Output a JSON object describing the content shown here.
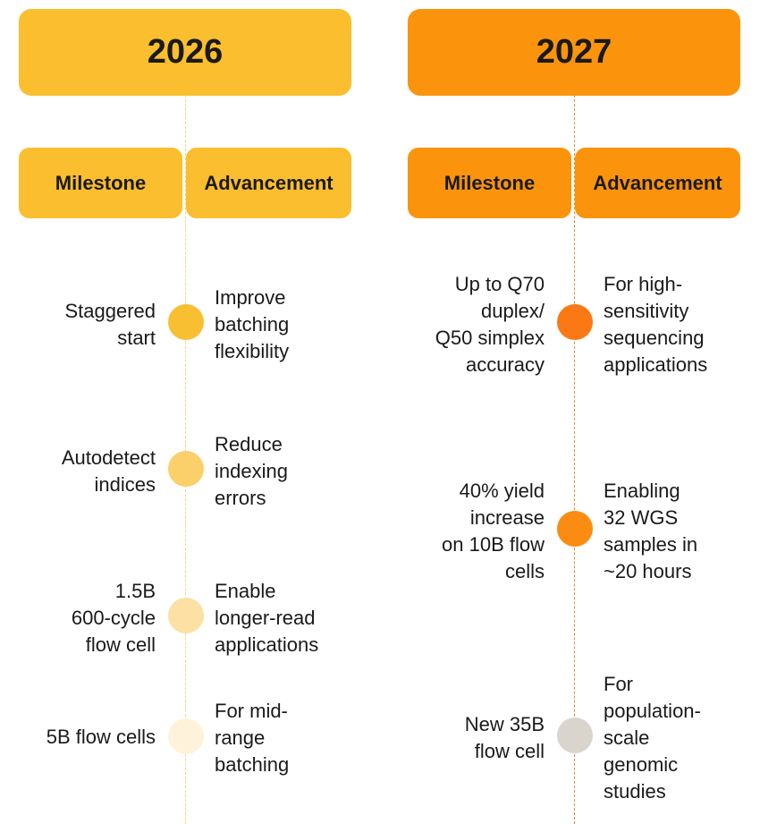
{
  "columns": [
    {
      "year": "2026",
      "accent": "#FBBE2E",
      "line_color": "#F7D37A",
      "headers": {
        "milestone": "Milestone",
        "advancement": "Advancement"
      },
      "items": [
        {
          "milestone": "Staggered\nstart",
          "advancement": "Improve\nbatching\nflexibility",
          "dot_color": "#F9BF33"
        },
        {
          "milestone": "Autodetect\nindices",
          "advancement": "Reduce\nindexing\nerrors",
          "dot_color": "#FBCF6A"
        },
        {
          "milestone": "1.5B\n600-cycle\nflow cell",
          "advancement": "Enable\nlonger-read\napplications",
          "dot_color": "#FCE0A4"
        },
        {
          "milestone": "5B flow cells",
          "advancement": "For mid-\nrange\nbatching",
          "dot_color": "#FEF2DA"
        }
      ]
    },
    {
      "year": "2027",
      "accent": "#FB940C",
      "line_color": "#EE8A2A",
      "headers": {
        "milestone": "Milestone",
        "advancement": "Advancement"
      },
      "items": [
        {
          "milestone": "Up to Q70\nduplex/\nQ50 simplex\naccuracy",
          "advancement": "For high-\nsensitivity\nsequencing\napplications",
          "dot_color": "#FA7914"
        },
        {
          "milestone": "40% yield\nincrease\non 10B flow\ncells",
          "advancement": "Enabling\n32 WGS\nsamples in\n~20 hours",
          "dot_color": "#FB8C12"
        },
        {
          "milestone": "New 35B\nflow cell",
          "advancement": "For\npopulation-\nscale\ngenomic\nstudies",
          "dot_color": "#D9D5CD"
        }
      ]
    }
  ]
}
